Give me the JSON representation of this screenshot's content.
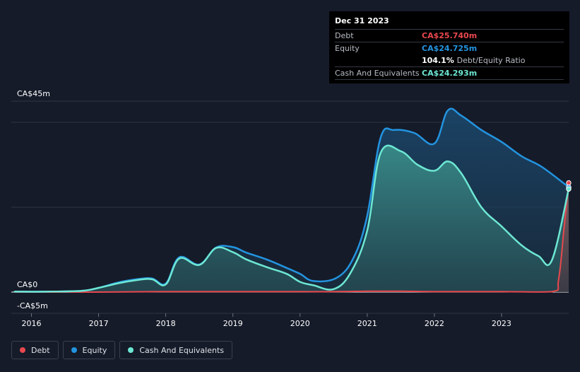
{
  "tooltip": {
    "date": "Dec 31 2023",
    "rows": [
      {
        "label": "Debt",
        "value": "CA$25.740m",
        "color": "#e8484e"
      },
      {
        "label": "Equity",
        "value": "CA$24.725m",
        "color": "#2394e0"
      },
      {
        "label": "",
        "value": "104.1%",
        "suffix": "Debt/Equity Ratio",
        "color": "#ffffff"
      },
      {
        "label": "Cash And Equivalents",
        "value": "CA$24.293m",
        "color": "#6de7d3"
      }
    ]
  },
  "legend": [
    {
      "label": "Debt",
      "color": "#e8484e"
    },
    {
      "label": "Equity",
      "color": "#2394e0"
    },
    {
      "label": "Cash And Equivalents",
      "color": "#6de7d3"
    }
  ],
  "chart_data": {
    "type": "area",
    "y_tick_labels": [
      {
        "value": 45,
        "label": "CA$45m"
      },
      {
        "value": 0,
        "label": "CA$0"
      },
      {
        "value": -5,
        "label": "-CA$5m"
      }
    ],
    "ylim": [
      -5,
      45
    ],
    "xlim": [
      2015.7,
      2024.0
    ],
    "x_ticks": [
      2016,
      2017,
      2018,
      2019,
      2020,
      2021,
      2022,
      2023
    ],
    "x_tick_labels": [
      "2016",
      "2017",
      "2018",
      "2019",
      "2020",
      "2021",
      "2022",
      "2023"
    ],
    "gridlines": [
      45,
      40,
      20,
      0,
      -5
    ],
    "series": [
      {
        "name": "Debt",
        "color": "#e8484e",
        "points": [
          [
            2015.75,
            0.0
          ],
          [
            2016.5,
            0.0
          ],
          [
            2017.0,
            0.0
          ],
          [
            2018.0,
            0.1
          ],
          [
            2019.0,
            0.1
          ],
          [
            2020.0,
            0.1
          ],
          [
            2020.5,
            0.1
          ],
          [
            2021.0,
            0.2
          ],
          [
            2021.5,
            0.2
          ],
          [
            2022.0,
            0.1
          ],
          [
            2023.0,
            0.1
          ],
          [
            2023.75,
            0.1
          ],
          [
            2023.85,
            3.0
          ],
          [
            2023.93,
            15.0
          ],
          [
            2024.0,
            25.74
          ]
        ]
      },
      {
        "name": "Equity",
        "color": "#2394e0",
        "points": [
          [
            2015.75,
            0.1
          ],
          [
            2016.2,
            0.1
          ],
          [
            2016.75,
            0.3
          ],
          [
            2017.0,
            1.0
          ],
          [
            2017.3,
            2.3
          ],
          [
            2017.6,
            3.1
          ],
          [
            2017.8,
            3.2
          ],
          [
            2018.0,
            2.0
          ],
          [
            2018.2,
            8.2
          ],
          [
            2018.5,
            6.5
          ],
          [
            2018.75,
            10.5
          ],
          [
            2019.0,
            10.6
          ],
          [
            2019.2,
            9.3
          ],
          [
            2019.5,
            7.7
          ],
          [
            2019.8,
            5.7
          ],
          [
            2020.0,
            4.3
          ],
          [
            2020.2,
            2.6
          ],
          [
            2020.55,
            3.4
          ],
          [
            2020.8,
            8.2
          ],
          [
            2021.0,
            18.0
          ],
          [
            2021.2,
            36.4
          ],
          [
            2021.4,
            38.2
          ],
          [
            2021.7,
            37.5
          ],
          [
            2022.0,
            35.0
          ],
          [
            2022.2,
            42.8
          ],
          [
            2022.4,
            41.6
          ],
          [
            2022.7,
            38.2
          ],
          [
            2023.0,
            35.4
          ],
          [
            2023.3,
            32.0
          ],
          [
            2023.6,
            29.5
          ],
          [
            2024.0,
            24.725
          ]
        ]
      },
      {
        "name": "Cash And Equivalents",
        "color": "#6de7d3",
        "points": [
          [
            2015.75,
            0.1
          ],
          [
            2016.2,
            0.1
          ],
          [
            2016.75,
            0.3
          ],
          [
            2017.0,
            1.0
          ],
          [
            2017.3,
            2.1
          ],
          [
            2017.6,
            2.9
          ],
          [
            2017.8,
            3.0
          ],
          [
            2018.0,
            1.8
          ],
          [
            2018.2,
            7.9
          ],
          [
            2018.5,
            6.4
          ],
          [
            2018.75,
            10.4
          ],
          [
            2019.0,
            9.4
          ],
          [
            2019.2,
            7.7
          ],
          [
            2019.5,
            5.9
          ],
          [
            2019.8,
            4.3
          ],
          [
            2020.0,
            2.4
          ],
          [
            2020.2,
            1.6
          ],
          [
            2020.5,
            0.7
          ],
          [
            2020.75,
            4.5
          ],
          [
            2021.0,
            14.5
          ],
          [
            2021.2,
            32.8
          ],
          [
            2021.5,
            33.2
          ],
          [
            2021.75,
            30.0
          ],
          [
            2022.0,
            28.6
          ],
          [
            2022.2,
            30.8
          ],
          [
            2022.4,
            28.0
          ],
          [
            2022.7,
            20.0
          ],
          [
            2023.0,
            15.5
          ],
          [
            2023.3,
            11.0
          ],
          [
            2023.55,
            8.5
          ],
          [
            2023.75,
            7.5
          ],
          [
            2024.0,
            24.293
          ]
        ]
      }
    ]
  }
}
